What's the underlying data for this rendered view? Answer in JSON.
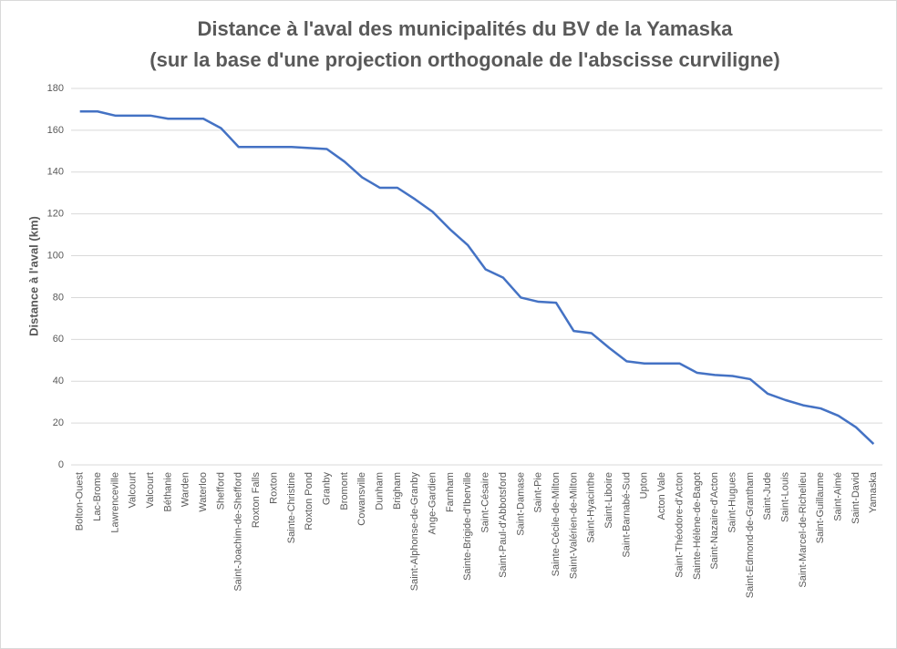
{
  "chart_data": {
    "type": "line",
    "title": [
      "Distance à l'aval des municipalités du BV de la Yamaska",
      "(sur la base d'une projection orthogonale de l'abscisse curviligne)"
    ],
    "y_label": "Distance à l'aval (km)",
    "categories": [
      "Bolton-Ouest",
      "Lac-Brome",
      "Lawrenceville",
      "Valcourt",
      "Valcourt",
      "Béthanie",
      "Warden",
      "Waterloo",
      "Shefford",
      "Saint-Joachim-de-Shefford",
      "Roxton Falls",
      "Roxton",
      "Sainte-Christine",
      "Roxton Pond",
      "Granby",
      "Bromont",
      "Cowansville",
      "Dunham",
      "Brigham",
      "Saint-Alphonse-de-Granby",
      "Ange-Gardien",
      "Farnham",
      "Sainte-Brigide-d'Iberville",
      "Saint-Césaire",
      "Saint-Paul-d'Abbotsford",
      "Saint-Damase",
      "Saint-Pie",
      "Sainte-Cécile-de-Milton",
      "Saint-Valérien-de-Milton",
      "Saint-Hyacinthe",
      "Saint-Liboire",
      "Saint-Barnabé-Sud",
      "Upton",
      "Acton Vale",
      "Saint-Théodore-d'Acton",
      "Sainte-Hélène-de-Bagot",
      "Saint-Nazaire-d'Acton",
      "Saint-Hugues",
      "Saint-Edmond-de-Grantham",
      "Saint-Jude",
      "Saint-Louis",
      "Saint-Marcel-de-Richelieu",
      "Saint-Guillaume",
      "Saint-Aimé",
      "Saint-David",
      "Yamaska"
    ],
    "values": [
      169,
      169,
      167,
      167,
      167,
      165.5,
      165.5,
      165.5,
      161,
      152,
      152,
      152,
      152,
      151.5,
      151,
      145,
      137.5,
      132.5,
      132.5,
      127,
      121,
      112.5,
      105,
      93.5,
      89.5,
      80,
      78,
      77.5,
      64,
      63,
      56,
      49.5,
      48.5,
      48.5,
      48.5,
      44,
      43,
      42.5,
      41,
      34,
      31,
      28.5,
      27,
      23.5,
      18,
      10
    ],
    "color": "#4472c4",
    "ylim": [
      0,
      180
    ],
    "yticks": [
      0,
      20,
      40,
      60,
      80,
      100,
      120,
      140,
      160,
      180
    ],
    "grid": true
  }
}
